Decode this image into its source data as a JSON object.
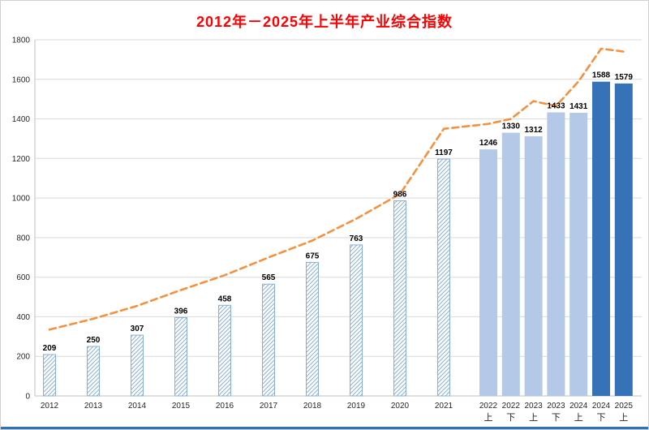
{
  "title": "2012年－2025年上半年产业综合指数",
  "colors": {
    "title": "#ff0000",
    "hatch": "#88b0d6",
    "bar_border": "#88b0d6",
    "bar_light": "#b4c9e7",
    "bar_dark": "#3572b8",
    "line": "#f5913e",
    "grid": "#d9d9d9",
    "axis": "#bfbfbf",
    "bottom_strip": "#2e74b5"
  },
  "chart_data": {
    "type": "bar+line",
    "title": "2012年－2025年上半年产业综合指数",
    "categories": [
      "2012",
      "2013",
      "2014",
      "2015",
      "2016",
      "2017",
      "2018",
      "2019",
      "2020",
      "2021",
      "2022上",
      "2022下",
      "2023上",
      "2023下",
      "2024上",
      "2024下",
      "2025上"
    ],
    "series": [
      {
        "name": "产业综合指数",
        "type": "bar",
        "values": [
          209,
          250,
          307,
          396,
          458,
          565,
          675,
          763,
          986,
          1197,
          1246,
          1330,
          1312,
          1433,
          1431,
          1588,
          1579
        ]
      },
      {
        "name": "趋势虚线",
        "type": "line",
        "values": [
          335,
          390,
          455,
          535,
          610,
          700,
          785,
          895,
          1020,
          1350,
          1375,
          1400,
          1490,
          1465,
          1590,
          1755,
          1740
        ]
      }
    ],
    "bar_styles": [
      "hatch",
      "hatch",
      "hatch",
      "hatch",
      "hatch",
      "hatch",
      "hatch",
      "hatch",
      "hatch",
      "hatch",
      "light",
      "light",
      "light",
      "light",
      "light",
      "dark",
      "dark"
    ],
    "ylim": [
      0,
      1800
    ],
    "yticks": [
      0,
      200,
      400,
      600,
      800,
      1000,
      1200,
      1400,
      1600,
      1800
    ],
    "xlabel": "",
    "ylabel": "",
    "grid": true,
    "legend": "none"
  }
}
